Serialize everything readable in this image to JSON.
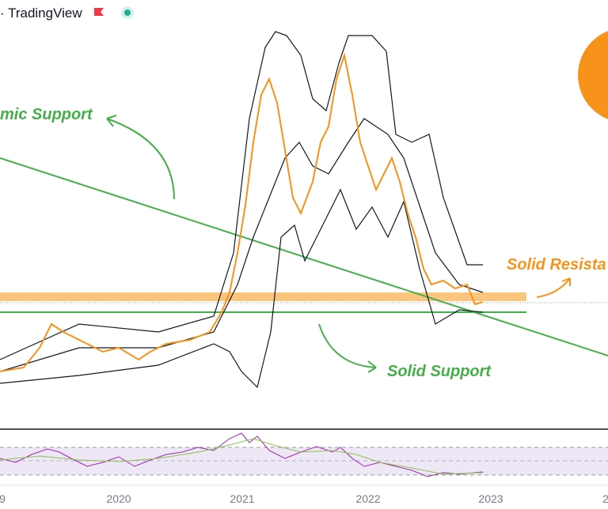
{
  "header": {
    "brand": "· TradingView"
  },
  "annotations": {
    "dynamic_support": "mic Support",
    "solid_resistance": "Solid Resista",
    "solid_support": "Solid Support"
  },
  "x_axis": {
    "labels": [
      "9",
      "2020",
      "2021",
      "2022",
      "2023",
      "2"
    ]
  }
}
